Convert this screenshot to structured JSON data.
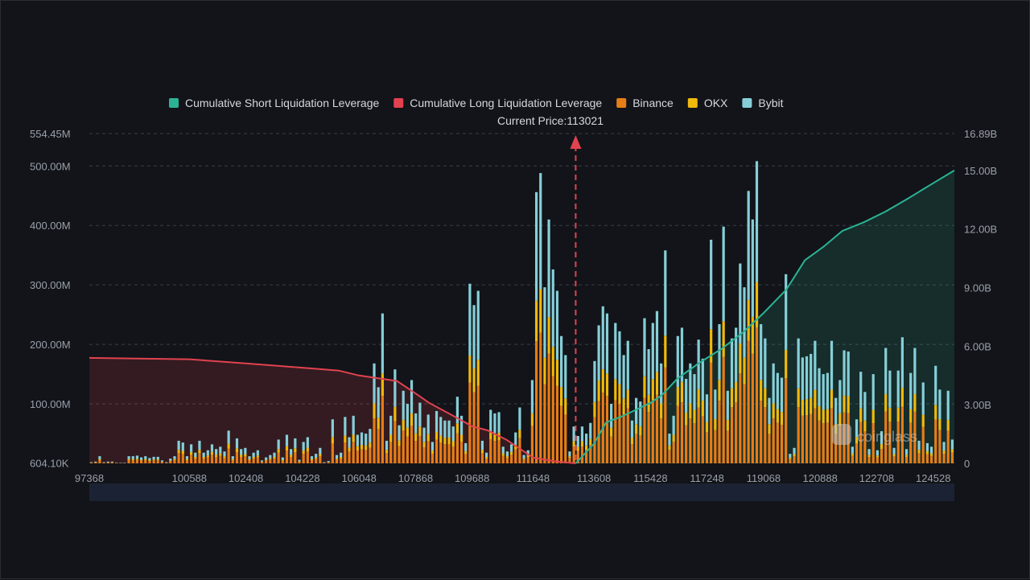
{
  "chart_data": {
    "type": "bar",
    "title": "Current Price:113021",
    "current_price": 113021,
    "legend": [
      {
        "label": "Cumulative Short Liquidation Leverage",
        "color": "#2bb394"
      },
      {
        "label": "Cumulative Long Liquidation Leverage",
        "color": "#e2424f"
      },
      {
        "label": "Binance",
        "color": "#e77d16"
      },
      {
        "label": "OKX",
        "color": "#f0b90b"
      },
      {
        "label": "Bybit",
        "color": "#86cfd8"
      }
    ],
    "legend_position": "top-center",
    "x_ticks": [
      "97368",
      "100588",
      "102408",
      "104228",
      "106048",
      "107868",
      "109688",
      "111648",
      "113608",
      "115428",
      "117248",
      "119068",
      "120888",
      "122708",
      "124528"
    ],
    "x_range": [
      97368,
      125208
    ],
    "left_axis": {
      "ticks": [
        "554.45M",
        "500.00M",
        "400.00M",
        "300.00M",
        "200.00M",
        "100.00M",
        "604.10K"
      ],
      "range": [
        0,
        554.45
      ],
      "unit": "M"
    },
    "right_axis": {
      "ticks": [
        "16.89B",
        "15.00B",
        "12.00B",
        "9.00B",
        "6.00B",
        "3.00B",
        "0"
      ],
      "range": [
        0,
        16.89
      ],
      "unit": "B"
    },
    "grid": true,
    "bar_values_M": [
      2,
      3,
      12,
      2,
      3,
      3,
      1,
      1,
      1,
      12,
      12,
      13,
      10,
      12,
      9,
      11,
      11,
      5,
      2,
      8,
      12,
      38,
      35,
      12,
      32,
      18,
      38,
      18,
      22,
      32,
      24,
      28,
      20,
      55,
      12,
      42,
      24,
      26,
      12,
      18,
      22,
      5,
      10,
      14,
      18,
      40,
      10,
      48,
      24,
      42,
      6,
      36,
      44,
      12,
      16,
      26,
      2,
      4,
      74,
      14,
      18,
      78,
      44,
      80,
      48,
      52,
      50,
      58,
      168,
      128,
      252,
      38,
      80,
      158,
      64,
      122,
      100,
      140,
      84,
      102,
      60,
      82,
      36,
      88,
      78,
      72,
      72,
      62,
      112,
      80,
      34,
      302,
      266,
      290,
      38,
      18,
      90,
      84,
      86,
      28,
      20,
      32,
      52,
      94,
      14,
      22,
      140,
      456,
      488,
      296,
      410,
      326,
      290,
      214,
      182,
      20,
      62,
      46,
      62,
      50,
      68,
      172,
      232,
      264,
      252,
      100,
      236,
      222,
      182,
      206,
      72,
      110,
      104,
      244,
      192,
      236,
      256,
      168,
      358,
      50,
      80,
      214,
      228,
      142,
      168,
      150,
      208,
      176,
      116,
      376,
      124,
      234,
      398,
      122,
      210,
      228,
      336,
      296,
      458,
      410,
      508,
      234,
      210,
      110,
      168,
      152,
      144,
      318,
      16,
      26,
      210,
      178,
      180,
      184,
      206,
      160,
      150,
      152,
      206,
      110,
      140,
      190,
      188,
      28,
      74,
      154,
      120,
      24,
      150,
      22,
      54,
      194,
      156,
      26,
      156,
      212,
      24,
      152,
      194,
      38,
      136,
      34,
      28,
      164,
      124,
      36,
      122,
      40
    ],
    "long_cumulative_B": [
      {
        "x": 97368,
        "y": 5.4
      },
      {
        "x": 100588,
        "y": 5.33
      },
      {
        "x": 102408,
        "y": 5.12
      },
      {
        "x": 104228,
        "y": 4.9
      },
      {
        "x": 105400,
        "y": 4.75
      },
      {
        "x": 106048,
        "y": 4.5
      },
      {
        "x": 107268,
        "y": 4.22
      },
      {
        "x": 107868,
        "y": 3.58
      },
      {
        "x": 108300,
        "y": 3.1
      },
      {
        "x": 109000,
        "y": 2.5
      },
      {
        "x": 109688,
        "y": 1.9
      },
      {
        "x": 110200,
        "y": 1.68
      },
      {
        "x": 110800,
        "y": 1.2
      },
      {
        "x": 111648,
        "y": 0.3
      },
      {
        "x": 112400,
        "y": 0.1
      },
      {
        "x": 113021,
        "y": 0
      }
    ],
    "short_cumulative_B": [
      {
        "x": 113021,
        "y": 0
      },
      {
        "x": 113608,
        "y": 1.0
      },
      {
        "x": 114000,
        "y": 2.1
      },
      {
        "x": 114500,
        "y": 2.4
      },
      {
        "x": 114900,
        "y": 2.7
      },
      {
        "x": 115428,
        "y": 3.1
      },
      {
        "x": 115800,
        "y": 3.5
      },
      {
        "x": 116300,
        "y": 4.35
      },
      {
        "x": 117000,
        "y": 5.15
      },
      {
        "x": 117700,
        "y": 5.85
      },
      {
        "x": 118400,
        "y": 6.7
      },
      {
        "x": 119068,
        "y": 7.7
      },
      {
        "x": 119800,
        "y": 8.9
      },
      {
        "x": 120400,
        "y": 10.4
      },
      {
        "x": 121000,
        "y": 11.1
      },
      {
        "x": 121600,
        "y": 11.9
      },
      {
        "x": 122300,
        "y": 12.35
      },
      {
        "x": 123000,
        "y": 12.9
      },
      {
        "x": 123700,
        "y": 13.55
      },
      {
        "x": 124528,
        "y": 14.35
      },
      {
        "x": 125208,
        "y": 15.0
      }
    ],
    "watermark": "coinglass"
  }
}
